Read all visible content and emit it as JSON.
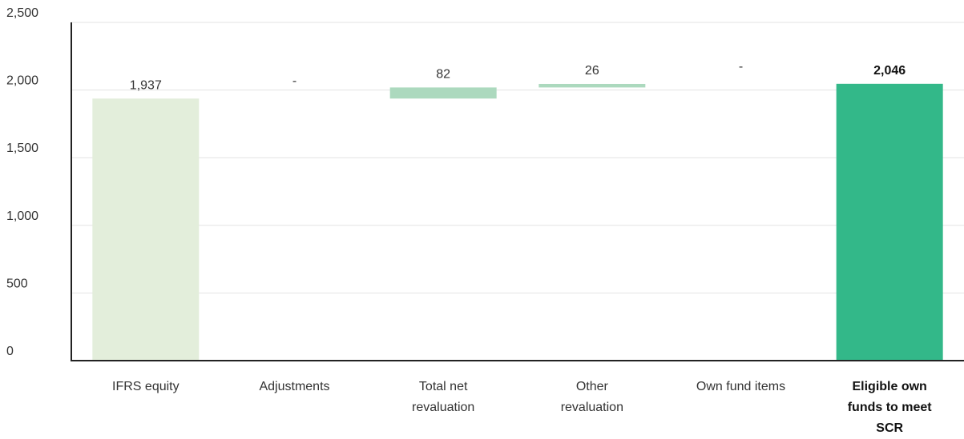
{
  "chart_data": {
    "type": "bar",
    "subtype": "waterfall",
    "categories": [
      {
        "lines": [
          "IFRS equity"
        ],
        "bold": false
      },
      {
        "lines": [
          "Adjustments"
        ],
        "bold": false
      },
      {
        "lines": [
          "Total net",
          "revaluation"
        ],
        "bold": false
      },
      {
        "lines": [
          "Other",
          "revaluation"
        ],
        "bold": false
      },
      {
        "lines": [
          "Own fund items"
        ],
        "bold": false
      },
      {
        "lines": [
          "Eligible own",
          "funds to meet",
          "SCR"
        ],
        "bold": true
      }
    ],
    "bars": [
      {
        "base": 0,
        "value": 1937,
        "label": "1,937",
        "kind": "total"
      },
      {
        "base": 1937,
        "value": 0,
        "label": "-",
        "kind": "change"
      },
      {
        "base": 1937,
        "value": 82,
        "label": "82",
        "kind": "change"
      },
      {
        "base": 2019,
        "value": 26,
        "label": "26",
        "kind": "change"
      },
      {
        "base": 2045,
        "value": 0,
        "label": "-",
        "kind": "change"
      },
      {
        "base": 0,
        "value": 2046,
        "label": "2,046",
        "kind": "final"
      }
    ],
    "yticks": [
      0,
      500,
      1000,
      1500,
      2000,
      2500
    ],
    "ytick_labels": [
      "0",
      "500",
      "1,000",
      "1,500",
      "2,000",
      "2,500"
    ],
    "ylim": [
      0,
      2500
    ],
    "grid": true,
    "legend": "none",
    "title": "",
    "xlabel": "",
    "ylabel": "",
    "colors": {
      "total": "#e3eedb",
      "change": "#acd9be",
      "final": "#33b889",
      "grid": "#e3e3e3",
      "axis": "#222222"
    }
  }
}
